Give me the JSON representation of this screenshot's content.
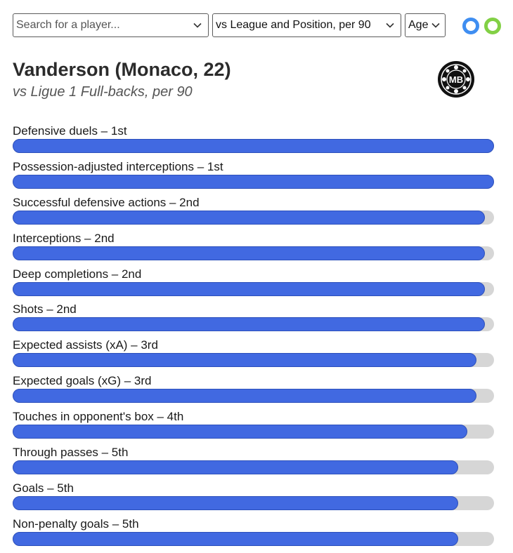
{
  "controls": {
    "player_search": {
      "placeholder": "Search for a player...",
      "value": ""
    },
    "comparison": {
      "selected": "vs League and Position, per 90"
    },
    "age": {
      "selected": "Age"
    }
  },
  "colors": {
    "bar_fill": "#4169e1",
    "bar_track": "#d6d6d6",
    "toggle_blue": "#3f8ef1",
    "toggle_green": "#82d045"
  },
  "player": {
    "heading": "Vanderson (Monaco, 22)",
    "subheading": "vs Ligue 1 Full-backs, per 90"
  },
  "logo": {
    "text": "MB"
  },
  "metrics": [
    {
      "label": "Defensive duels – 1st",
      "level": 1.0
    },
    {
      "label": "Possession-adjusted interceptions – 1st",
      "level": 1.0
    },
    {
      "label": "Successful defensive actions – 2nd",
      "level": 0.981
    },
    {
      "label": "Interceptions – 2nd",
      "level": 0.981
    },
    {
      "label": "Deep completions – 2nd",
      "level": 0.981
    },
    {
      "label": "Shots – 2nd",
      "level": 0.981
    },
    {
      "label": "Expected assists (xA) – 3rd",
      "level": 0.963
    },
    {
      "label": "Expected goals (xG) – 3rd",
      "level": 0.963
    },
    {
      "label": "Touches in opponent's box – 4th",
      "level": 0.944
    },
    {
      "label": "Through passes – 5th",
      "level": 0.925
    },
    {
      "label": "Goals – 5th",
      "level": 0.925
    },
    {
      "label": "Non-penalty goals – 5th",
      "level": 0.925
    }
  ]
}
